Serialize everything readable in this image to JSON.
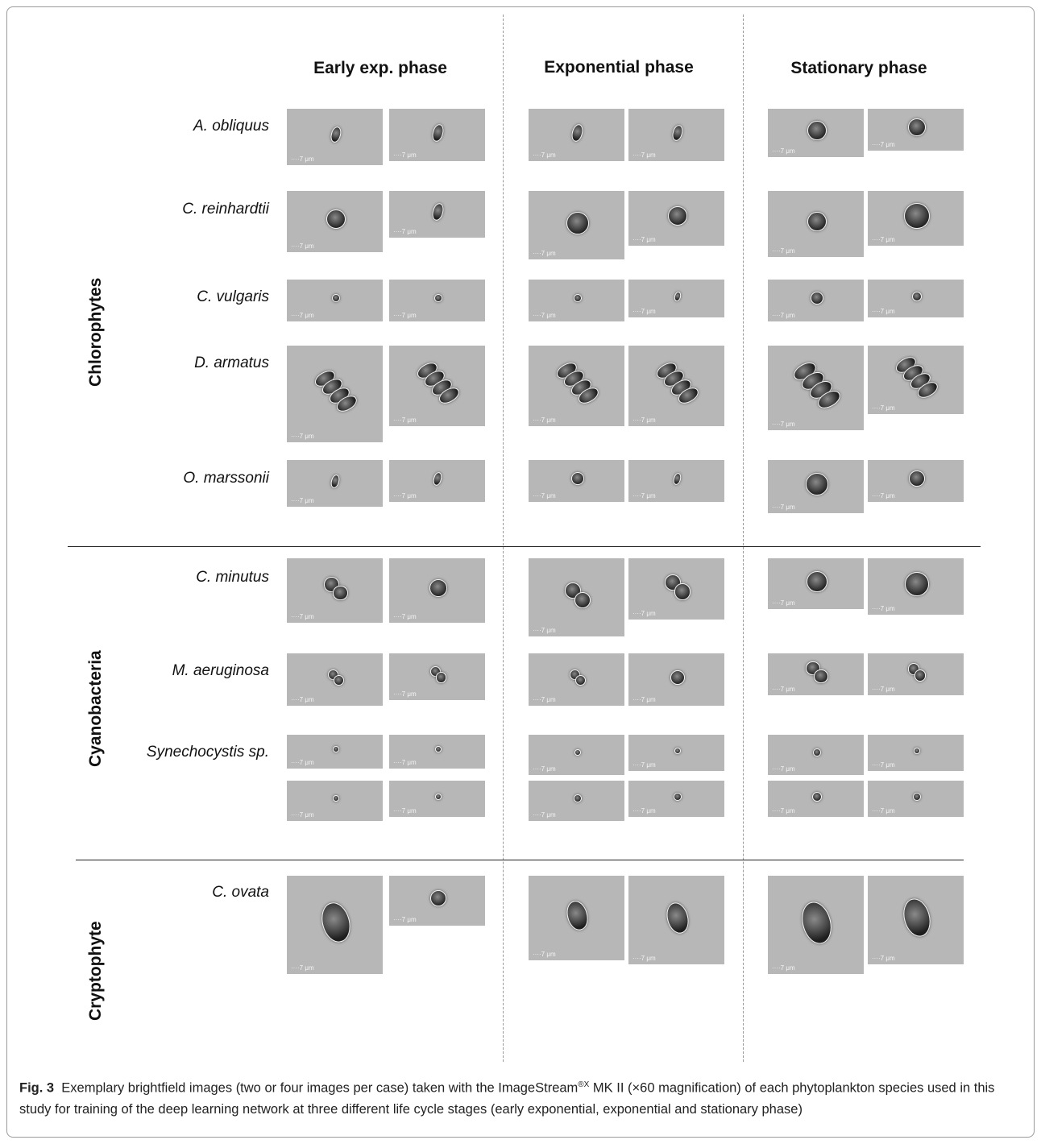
{
  "phases": [
    "Early exp. phase",
    "Exponential phase",
    "Stationary phase"
  ],
  "groups": [
    "Chlorophytes",
    "Cyanobacteria",
    "Cryptophyte"
  ],
  "species": [
    "A. obliquus",
    "C.  reinhardtii",
    "C. vulgaris",
    "D. armatus",
    "O. marssonii",
    "C. minutus",
    "M. aeruginosa",
    "Synechocystis sp.",
    "C. ovata"
  ],
  "scale_label": "····7 μm",
  "caption": {
    "fig_label": "Fig. 3",
    "text_before_mark": "Exemplary brightfield images (two or four images per case) taken with the ImageStream",
    "trademark": "®X",
    "text_after_mark": " MK II (×60 magnification) of each phytoplankton species used in this study for training of the deep learning network at three different life cycle stages (early exponential, exponential and stationary phase)"
  }
}
